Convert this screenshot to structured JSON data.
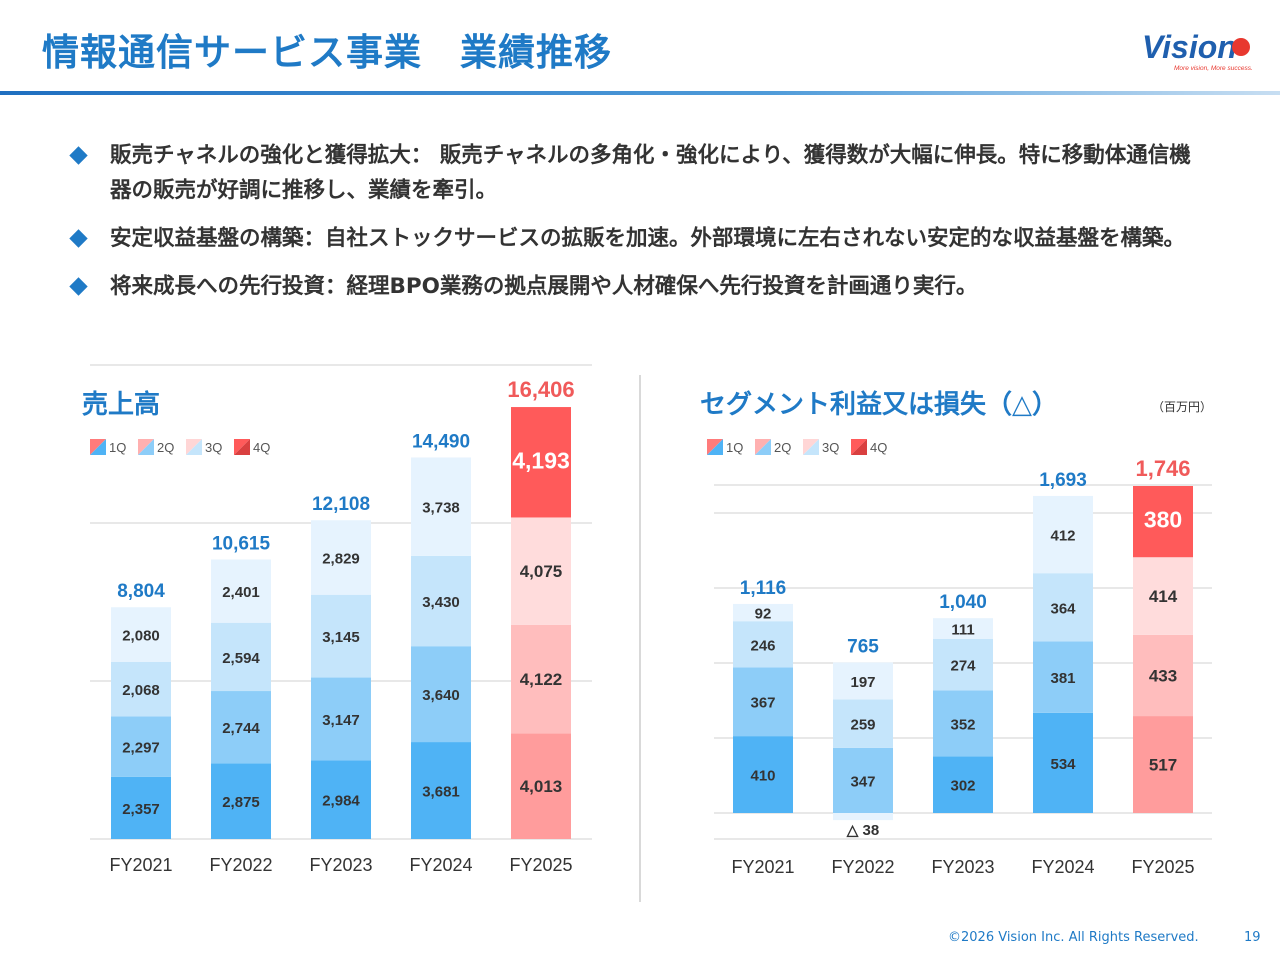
{
  "header": {
    "title": "情報通信サービス事業　業績推移",
    "logo_text": "Vision",
    "logo_tagline": "More vision, More success."
  },
  "bullets": [
    "販売チャネルの強化と獲得拡大： 販売チャネルの多角化・強化により、獲得数が大幅に伸長。特に移動体通信機器の販売が好調に推移し、業績を牽引。",
    "安定収益基盤の構築：自社ストックサービスの拡販を加速。外部環境に左右されない安定的な収益基盤を構築。",
    "将来成長への先行投資：経理BPO業務の拠点展開や人材確保へ先行投資を計画通り実行。"
  ],
  "unit_label": "（百万円）",
  "colors": {
    "accent": "#1f7ac6",
    "blue_q1": "#4fb3f5",
    "blue_q2": "#8dcdf8",
    "blue_q3": "#c5e5fb",
    "blue_q4": "#e6f3fe",
    "red_q1": "#ff9c9c",
    "red_q2": "#ffbdbd",
    "red_q3": "#ffdcdc",
    "red_q4": "#ff5a5a",
    "total_blue": "#1f7ac6",
    "total_red": "#f05a5a"
  },
  "chart_data": [
    {
      "type": "bar",
      "stacked": true,
      "title": "売上高",
      "legend": [
        "1Q",
        "2Q",
        "3Q",
        "4Q"
      ],
      "categories": [
        "FY2021",
        "FY2022",
        "FY2023",
        "FY2024",
        "FY2025"
      ],
      "series": [
        {
          "name": "1Q",
          "values": [
            2357,
            2875,
            2984,
            3681,
            4013
          ]
        },
        {
          "name": "2Q",
          "values": [
            2297,
            2744,
            3147,
            3640,
            4122
          ]
        },
        {
          "name": "3Q",
          "values": [
            2068,
            2594,
            3145,
            3430,
            4075
          ]
        },
        {
          "name": "4Q",
          "values": [
            2080,
            2401,
            2829,
            3738,
            4193
          ]
        }
      ],
      "labels": [
        [
          "2,357",
          "2,297",
          "2,068",
          "2,080"
        ],
        [
          "2,875",
          "2,744",
          "2,594",
          "2,401"
        ],
        [
          "2,984",
          "3,147",
          "3,145",
          "2,829"
        ],
        [
          "3,681",
          "3,640",
          "3,430",
          "3,738"
        ],
        [
          "4,013",
          "4,122",
          "4,075",
          "4,193"
        ]
      ],
      "totals": [
        "8,804",
        "10,615",
        "12,108",
        "14,490",
        "16,406"
      ],
      "totals_values": [
        8804,
        10615,
        12108,
        14490,
        16406
      ],
      "highlight": "FY2025",
      "ylim": [
        0,
        18000
      ],
      "gridlines": [
        0,
        6000,
        12000,
        18000
      ]
    },
    {
      "type": "bar",
      "stacked": true,
      "title": "セグメント利益又は損失（△）",
      "legend": [
        "1Q",
        "2Q",
        "3Q",
        "4Q"
      ],
      "categories": [
        "FY2021",
        "FY2022",
        "FY2023",
        "FY2024",
        "FY2025"
      ],
      "series": [
        {
          "name": "1Q",
          "values": [
            410,
            -38,
            302,
            534,
            517
          ]
        },
        {
          "name": "2Q",
          "values": [
            367,
            347,
            352,
            381,
            433
          ]
        },
        {
          "name": "3Q",
          "values": [
            246,
            259,
            274,
            364,
            414
          ]
        },
        {
          "name": "4Q",
          "values": [
            92,
            197,
            111,
            412,
            380
          ]
        }
      ],
      "labels": [
        [
          "410",
          "367",
          "246",
          "92"
        ],
        [
          "△ 38",
          "347",
          "259",
          "197"
        ],
        [
          "302",
          "352",
          "274",
          "111"
        ],
        [
          "534",
          "381",
          "364",
          "412"
        ],
        [
          "517",
          "433",
          "414",
          "380"
        ]
      ],
      "totals": [
        "1,116",
        "765",
        "1,040",
        "1,693",
        "1,746"
      ],
      "totals_values": [
        1116,
        765,
        1040,
        1693,
        1746
      ],
      "highlight": "FY2025",
      "ylim": [
        -150,
        1900
      ],
      "gridlines": [
        -150,
        0,
        400,
        800,
        1200,
        1600,
        1900
      ]
    }
  ],
  "footer": {
    "copyright": "©2026 Vision Inc. All Rights Reserved.",
    "page": "19"
  }
}
